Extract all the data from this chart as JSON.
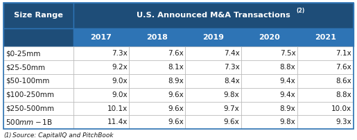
{
  "header_main": "U.S. Announced M&A Transactions",
  "header_super": "(2)",
  "col_header_left": "Size Range",
  "col_years": [
    "2017",
    "2018",
    "2019",
    "2020",
    "2021"
  ],
  "row_labels": [
    "$0-25mm",
    "$25-50mm",
    "$50-100mm",
    "$100-250mm",
    "$250-500mm",
    "$500mm-$1B"
  ],
  "values": [
    [
      "7.3x",
      "7.6x",
      "7.4x",
      "7.5x",
      "7.1x"
    ],
    [
      "9.2x",
      "8.1x",
      "7.3x",
      "8.8x",
      "7.6x"
    ],
    [
      "9.0x",
      "8.9x",
      "8.4x",
      "9.4x",
      "8.6x"
    ],
    [
      "9.0x",
      "9.6x",
      "9.8x",
      "9.4x",
      "8.8x"
    ],
    [
      "10.1x",
      "9.6x",
      "9.7x",
      "8.9x",
      "10.0x"
    ],
    [
      "11.4x",
      "9.6x",
      "9.6x",
      "9.8x",
      "9.3x"
    ]
  ],
  "header_bg": "#1e4d78",
  "subheader_bg": "#2e74b5",
  "header_text_color": "#ffffff",
  "data_text_color": "#1a1a1a",
  "footnote_text_color": "#1a1a1a",
  "border_color": "#2e74b5",
  "cell_border_color": "#aaaaaa",
  "figsize": [
    5.15,
    2.02
  ],
  "dpi": 100
}
